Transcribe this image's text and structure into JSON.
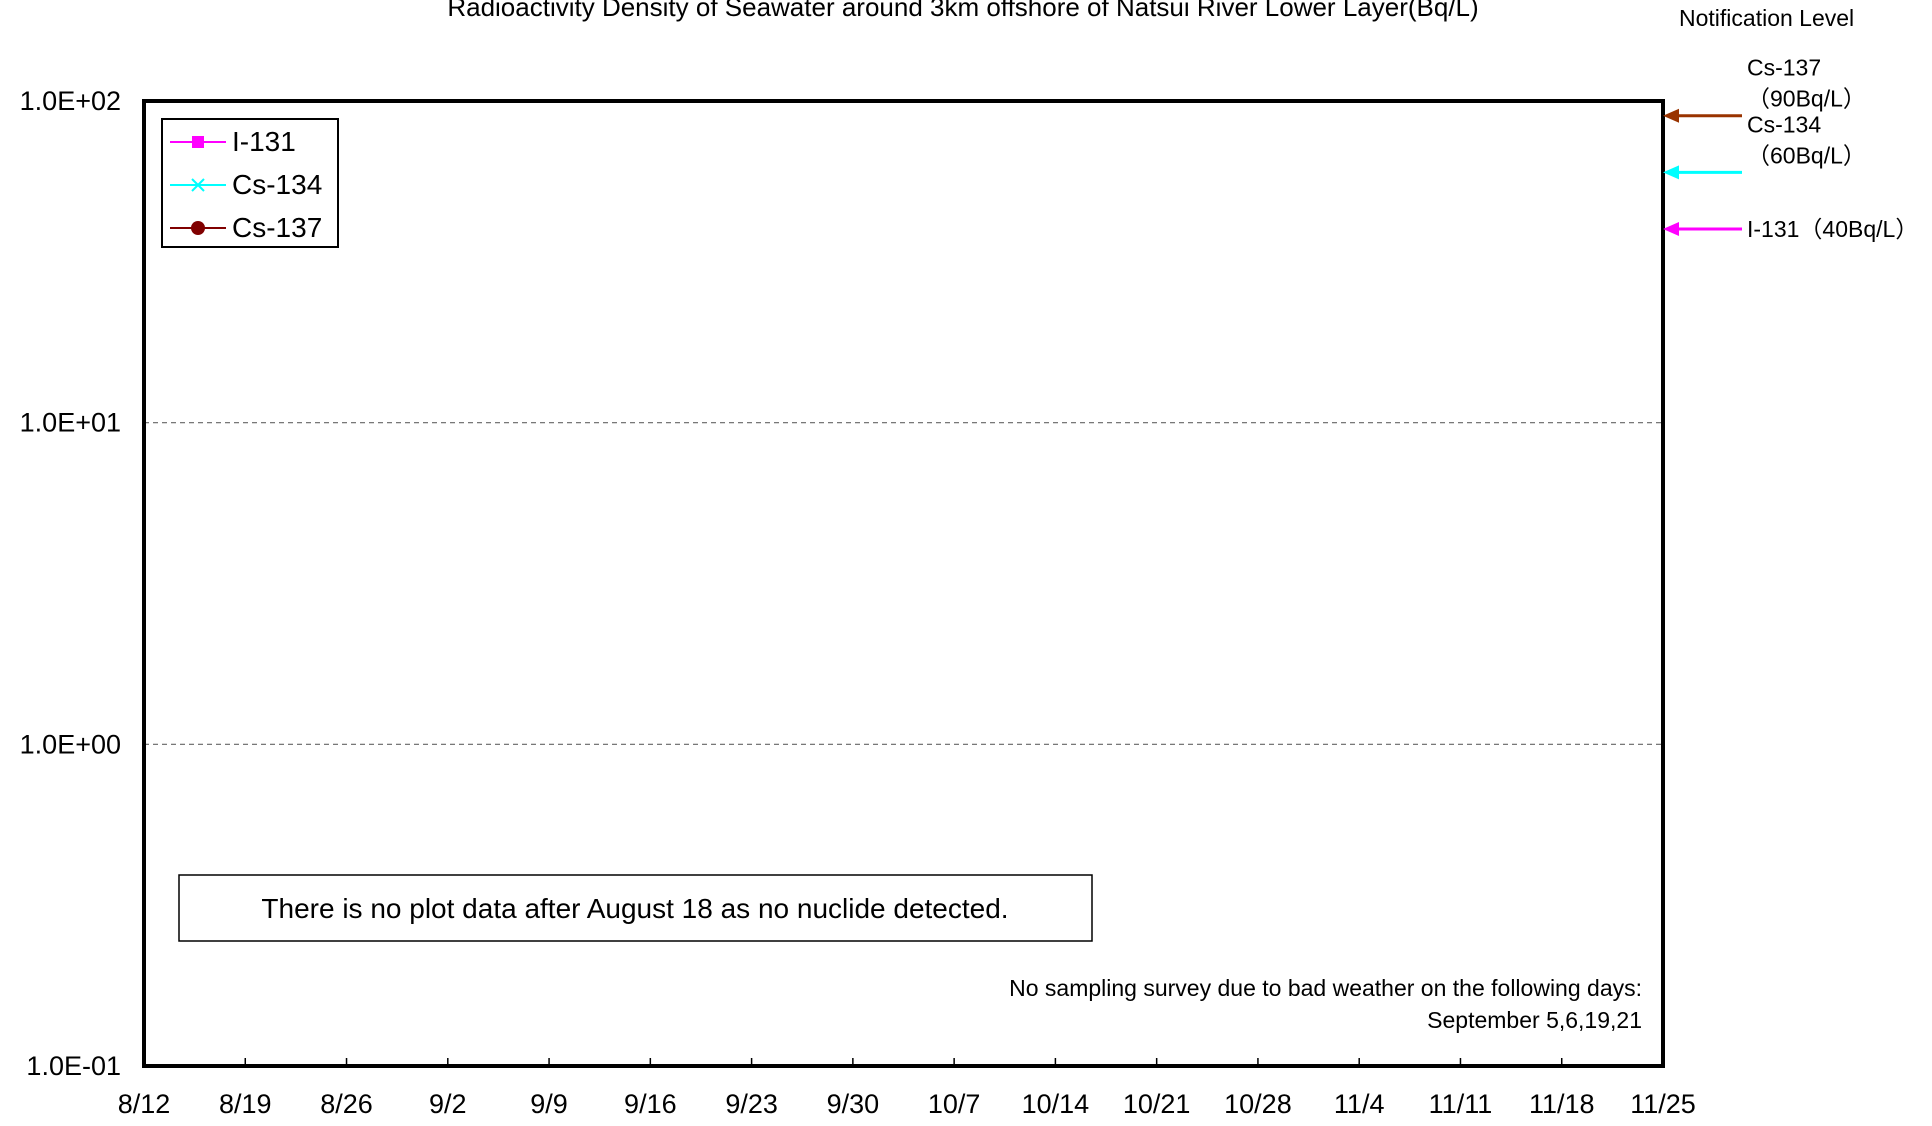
{
  "chart_data": {
    "type": "line",
    "title": "Radioactivity Density of Seawater around 3km offshore of Natsui River Lower Layer(Bq/L)",
    "xlabel": "",
    "ylabel": "",
    "y_scale": "log",
    "ylim": [
      0.1,
      100
    ],
    "y_ticks": [
      {
        "value": 100,
        "label": "1.0E+02"
      },
      {
        "value": 10,
        "label": "1.0E+01"
      },
      {
        "value": 1,
        "label": "1.0E+00"
      },
      {
        "value": 0.1,
        "label": "1.0E-01"
      }
    ],
    "x_ticks": [
      "8/12",
      "8/19",
      "8/26",
      "9/2",
      "9/9",
      "9/16",
      "9/23",
      "9/30",
      "10/7",
      "10/14",
      "10/21",
      "10/28",
      "11/4",
      "11/11",
      "11/18",
      "11/25"
    ],
    "grid": "horizontal dashed",
    "legend_placement": "top-left",
    "series": [
      {
        "name": "I-131",
        "color": "#ff00ff",
        "marker": "square",
        "values": []
      },
      {
        "name": "Cs-134",
        "color": "#00ffff",
        "marker": "x",
        "values": []
      },
      {
        "name": "Cs-137",
        "color": "#800000",
        "marker": "circle",
        "values": []
      }
    ],
    "notification_level": {
      "heading": "Notification Level",
      "levels": [
        {
          "value": 90,
          "color": "#993300",
          "label_lines": [
            "Cs-137",
            "（90Bq/L）"
          ]
        },
        {
          "value": 60,
          "color": "#00ffff",
          "label_lines": [
            "Cs-134",
            "（60Bq/L）"
          ]
        },
        {
          "value": 40,
          "color": "#ff00ff",
          "label_lines": [
            "I-131（40Bq/L）"
          ]
        }
      ]
    },
    "annotations": {
      "no_data_note": "There is no plot data after August 18 as no nuclide detected.",
      "weather_note_lines": [
        "No sampling survey due to bad weather on the following days:",
        "September 5,6,19,21"
      ]
    }
  }
}
